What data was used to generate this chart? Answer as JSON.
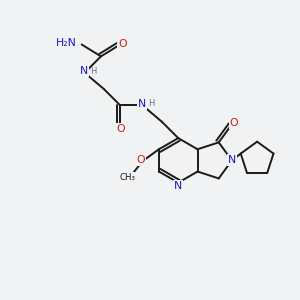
{
  "bg_color": "#f0f2f4",
  "bond_color": "#1a1a1a",
  "atom_colors": {
    "N": "#1919cc",
    "O": "#cc1919",
    "H": "#707070",
    "C": "#1a1a1a"
  },
  "lw": 1.4,
  "fs": 7.5
}
